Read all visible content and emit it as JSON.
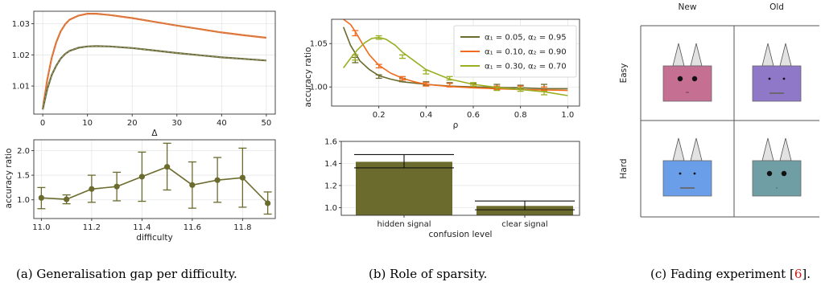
{
  "colors": {
    "orange": "#f26b1d",
    "olive": "#6b6b2e",
    "lime": "#9aae22",
    "bar": "#6b6b2e",
    "pink": "#c56f93",
    "purple": "#8f78c8",
    "blue": "#6a9ee8",
    "teal": "#6f9ea4"
  },
  "captions": {
    "a": "(a) Generalisation gap per difficulty.",
    "b": "(b) Role of sparsity.",
    "c_text": "(c) Fading experiment [",
    "c_ref": "6",
    "c_end": "]."
  },
  "chart_data": [
    {
      "type": "line",
      "title": "",
      "xlabel": "Δ",
      "ylabel": "",
      "xlim": [
        -2,
        52
      ],
      "ylim": [
        1.001,
        1.034
      ],
      "xticks": [
        "0",
        "10",
        "20",
        "30",
        "40",
        "50"
      ],
      "yticks": [
        "1.01",
        "1.02",
        "1.03"
      ],
      "grid": true,
      "series": [
        {
          "color": "orange",
          "points": [
            [
              0,
              1.0025
            ],
            [
              1,
              1.012
            ],
            [
              2,
              1.019
            ],
            [
              3,
              1.024
            ],
            [
              4,
              1.0275
            ],
            [
              5,
              1.0298
            ],
            [
              6,
              1.0313
            ],
            [
              8,
              1.0326
            ],
            [
              10,
              1.0332
            ],
            [
              12,
              1.0332
            ],
            [
              15,
              1.0328
            ],
            [
              20,
              1.0318
            ],
            [
              25,
              1.0306
            ],
            [
              30,
              1.0294
            ],
            [
              35,
              1.0283
            ],
            [
              40,
              1.0272
            ],
            [
              45,
              1.0263
            ],
            [
              50,
              1.0255
            ]
          ]
        },
        {
          "color": "olive",
          "points": [
            [
              0,
              1.0025
            ],
            [
              1,
              1.009
            ],
            [
              2,
              1.0135
            ],
            [
              3,
              1.0165
            ],
            [
              4,
              1.0188
            ],
            [
              5,
              1.0203
            ],
            [
              6,
              1.0213
            ],
            [
              8,
              1.0223
            ],
            [
              10,
              1.0227
            ],
            [
              12,
              1.0228
            ],
            [
              15,
              1.0227
            ],
            [
              20,
              1.0222
            ],
            [
              25,
              1.0214
            ],
            [
              30,
              1.0206
            ],
            [
              35,
              1.0199
            ],
            [
              40,
              1.0192
            ],
            [
              45,
              1.0187
            ],
            [
              50,
              1.0182
            ]
          ]
        }
      ]
    },
    {
      "type": "line",
      "title": "",
      "xlabel": "difficulty",
      "ylabel": "accuracy ratio",
      "xlim": [
        10.97,
        11.93
      ],
      "ylim": [
        0.62,
        2.22
      ],
      "xticks": [
        "11.0",
        "11.2",
        "11.4",
        "11.6",
        "11.8"
      ],
      "yticks": [
        "1.0",
        "1.5",
        "2.0"
      ],
      "grid": true,
      "series": [
        {
          "color": "olive",
          "points": [
            [
              11.0,
              1.04
            ],
            [
              11.1,
              1.01
            ],
            [
              11.2,
              1.22
            ],
            [
              11.3,
              1.27
            ],
            [
              11.4,
              1.47
            ],
            [
              11.5,
              1.67
            ],
            [
              11.6,
              1.3
            ],
            [
              11.7,
              1.4
            ],
            [
              11.8,
              1.45
            ],
            [
              11.9,
              0.93
            ]
          ],
          "err": [
            [
              0.82,
              1.25
            ],
            [
              0.92,
              1.1
            ],
            [
              0.95,
              1.5
            ],
            [
              0.98,
              1.56
            ],
            [
              0.97,
              1.97
            ],
            [
              1.2,
              2.15
            ],
            [
              0.83,
              1.77
            ],
            [
              0.95,
              1.86
            ],
            [
              0.85,
              2.05
            ],
            [
              0.71,
              1.16
            ]
          ]
        }
      ]
    },
    {
      "type": "line",
      "title": "",
      "xlabel": "ρ",
      "ylabel": "accuracy ratio",
      "xlim": [
        0.0,
        1.05
      ],
      "ylim": [
        0.978,
        1.078
      ],
      "xticks": [
        "0.2",
        "0.4",
        "0.6",
        "0.8",
        "1.0"
      ],
      "yticks": [
        "1.00",
        "1.05"
      ],
      "grid": true,
      "legend": "top-right",
      "series": [
        {
          "name": "α₁ = 0.05, α₂ = 0.95",
          "color": "olive",
          "points": [
            [
              0.05,
              1.069
            ],
            [
              0.08,
              1.048
            ],
            [
              0.12,
              1.03
            ],
            [
              0.16,
              1.02
            ],
            [
              0.2,
              1.013
            ],
            [
              0.25,
              1.009
            ],
            [
              0.3,
              1.006
            ],
            [
              0.4,
              1.003
            ],
            [
              0.5,
              1.001
            ],
            [
              0.6,
              1.0
            ],
            [
              0.7,
              0.9995
            ],
            [
              0.8,
              0.999
            ],
            [
              0.9,
              0.998
            ],
            [
              1.0,
              0.998
            ]
          ],
          "markers": [
            [
              0.1,
              1.031,
              0.003
            ],
            [
              0.2,
              1.012,
              0.002
            ],
            [
              0.3,
              1.008,
              0.002
            ],
            [
              0.4,
              1.004,
              0.002
            ],
            [
              0.5,
              1.003,
              0.002
            ],
            [
              0.6,
              1.002,
              0.002
            ],
            [
              0.7,
              1.001,
              0.002
            ],
            [
              0.8,
              1.0,
              0.002
            ],
            [
              0.9,
              1.0,
              0.003
            ]
          ]
        },
        {
          "name": "α₁ = 0.10, α₂ = 0.90",
          "color": "orange",
          "points": [
            [
              0.05,
              1.078
            ],
            [
              0.08,
              1.072
            ],
            [
              0.1,
              1.064
            ],
            [
              0.13,
              1.05
            ],
            [
              0.16,
              1.037
            ],
            [
              0.2,
              1.025
            ],
            [
              0.25,
              1.016
            ],
            [
              0.3,
              1.01
            ],
            [
              0.35,
              1.006
            ],
            [
              0.4,
              1.003
            ],
            [
              0.5,
              1.0005
            ],
            [
              0.6,
              0.999
            ],
            [
              0.7,
              0.998
            ],
            [
              0.8,
              0.997
            ],
            [
              0.9,
              0.9965
            ],
            [
              1.0,
              0.996
            ]
          ],
          "markers": [
            [
              0.1,
              1.062,
              0.003
            ],
            [
              0.2,
              1.024,
              0.002
            ],
            [
              0.3,
              1.01,
              0.002
            ],
            [
              0.4,
              1.003,
              0.002
            ],
            [
              0.5,
              1.002,
              0.002
            ],
            [
              0.6,
              1.001,
              0.002
            ],
            [
              0.7,
              0.999,
              0.002
            ],
            [
              0.8,
              0.999,
              0.002
            ],
            [
              0.9,
              0.998,
              0.002
            ]
          ]
        },
        {
          "name": "α₁ = 0.30, α₂ = 0.70",
          "color": "lime",
          "points": [
            [
              0.05,
              1.022
            ],
            [
              0.08,
              1.033
            ],
            [
              0.11,
              1.043
            ],
            [
              0.14,
              1.051
            ],
            [
              0.17,
              1.056
            ],
            [
              0.2,
              1.057
            ],
            [
              0.23,
              1.055
            ],
            [
              0.27,
              1.048
            ],
            [
              0.3,
              1.04
            ],
            [
              0.35,
              1.03
            ],
            [
              0.4,
              1.02
            ],
            [
              0.5,
              1.009
            ],
            [
              0.6,
              1.003
            ],
            [
              0.7,
              0.9995
            ],
            [
              0.8,
              0.997
            ],
            [
              0.9,
              0.9945
            ],
            [
              1.0,
              0.99
            ]
          ],
          "markers": [
            [
              0.1,
              1.034,
              0.003
            ],
            [
              0.2,
              1.057,
              0.002
            ],
            [
              0.3,
              1.035,
              0.002
            ],
            [
              0.4,
              1.017,
              0.002
            ],
            [
              0.5,
              1.01,
              0.002
            ],
            [
              0.6,
              1.003,
              0.002
            ],
            [
              0.7,
              0.998,
              0.002
            ],
            [
              0.8,
              0.997,
              0.002
            ],
            [
              0.9,
              0.993,
              0.002
            ]
          ]
        }
      ]
    },
    {
      "type": "bar",
      "title": "",
      "xlabel": "confusion level",
      "ylabel": "",
      "ylim": [
        0.93,
        1.6
      ],
      "yticks": [
        "1.0",
        "1.2",
        "1.4",
        "1.6"
      ],
      "grid": true,
      "categories": [
        "hidden signal",
        "clear signal"
      ],
      "values": [
        1.415,
        1.015
      ],
      "err": [
        [
          1.36,
          1.48
        ],
        [
          0.98,
          1.06
        ]
      ]
    },
    {
      "type": "table",
      "columns": [
        "New",
        "Old"
      ],
      "rows": [
        "Easy",
        "Hard"
      ],
      "cells": [
        [
          {
            "color": "pink",
            "eyes": "big",
            "mouth": "short"
          },
          {
            "color": "purple",
            "eyes": "small",
            "mouth": "long"
          }
        ],
        [
          {
            "color": "blue",
            "eyes": "small",
            "mouth": "long"
          },
          {
            "color": "teal",
            "eyes": "big",
            "mouth": "dot"
          }
        ]
      ]
    }
  ]
}
